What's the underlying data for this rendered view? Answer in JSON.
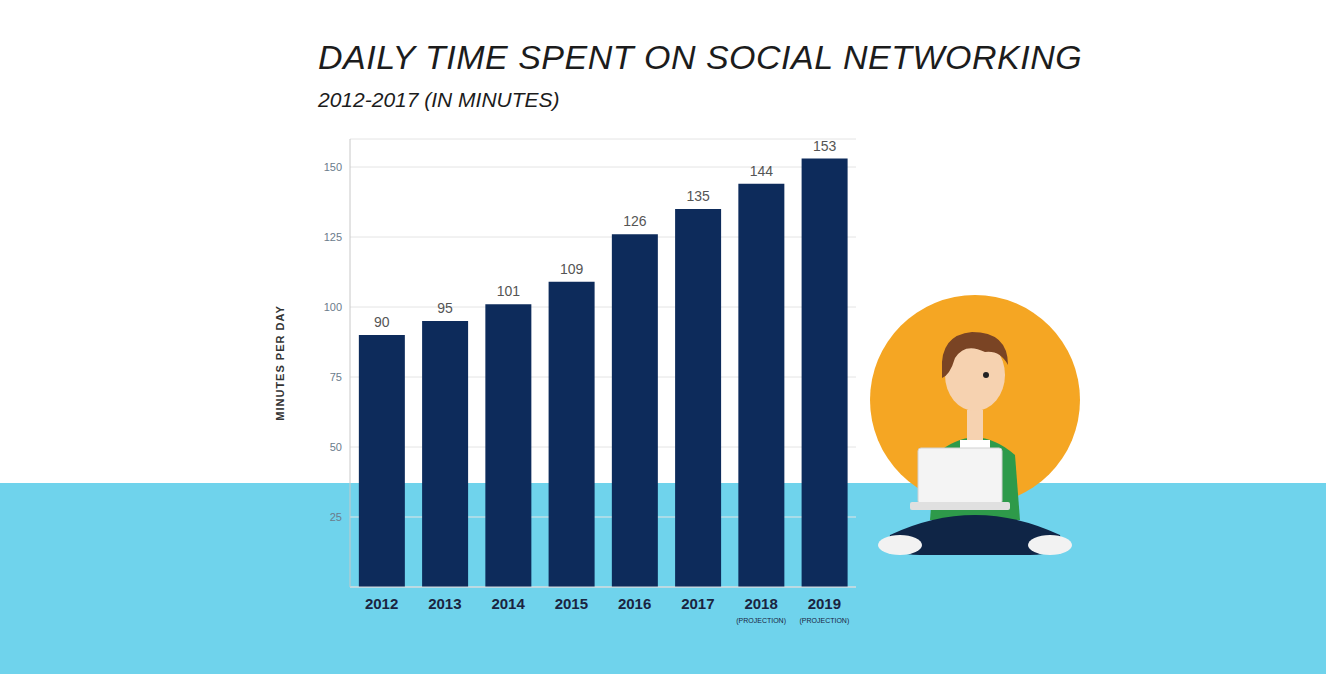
{
  "chart_data": {
    "type": "bar",
    "title": "DAILY TIME SPENT ON SOCIAL NETWORKING",
    "subtitle": "2012-2017 (IN MINUTES)",
    "y_label": "MINUTES PER DAY",
    "categories": [
      "2012",
      "2013",
      "2014",
      "2015",
      "2016",
      "2017",
      "2018 (PROJECTION)",
      "2019 (PROJECTION)"
    ],
    "values": [
      90,
      95,
      101,
      109,
      126,
      135,
      144,
      153
    ],
    "color": "#0d2b5b",
    "ylim": [
      0,
      160
    ],
    "yticks": [
      25,
      50,
      75,
      100,
      125,
      150
    ],
    "grid": true,
    "data_labels": true
  }
}
